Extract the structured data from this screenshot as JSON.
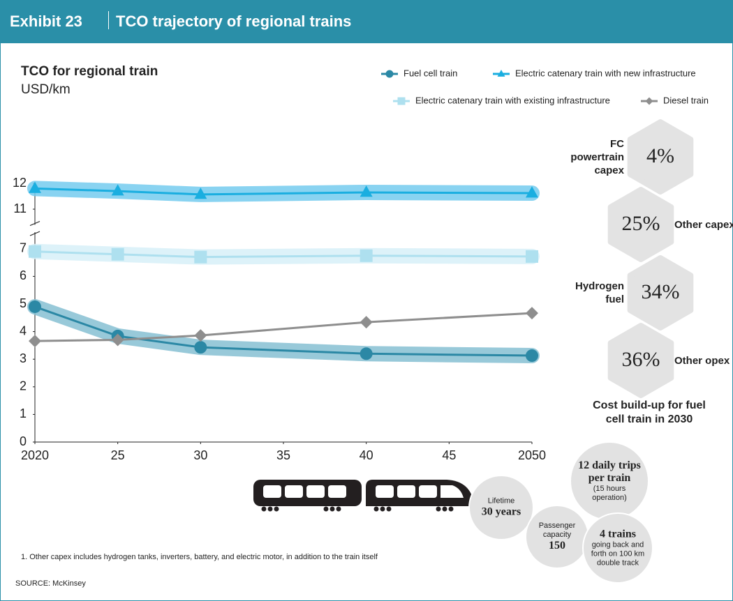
{
  "header": {
    "exhibit": "Exhibit 23",
    "title": "TCO trajectory of regional trains"
  },
  "chart_data": {
    "type": "line",
    "title": "TCO for regional train",
    "subtitle": "USD/km",
    "x": [
      2020,
      2025,
      2030,
      2040,
      2050
    ],
    "xlim": [
      2020,
      2050
    ],
    "xticks": [
      2020,
      {
        "value": 2025,
        "label": "25"
      },
      {
        "value": 2030,
        "label": "30"
      },
      {
        "value": 2035,
        "label": "35"
      },
      {
        "value": 2040,
        "label": "40"
      },
      {
        "value": 2045,
        "label": "45"
      },
      2050
    ],
    "ylim": [
      0,
      12
    ],
    "yticks": [
      0,
      1,
      2,
      3,
      4,
      5,
      6,
      7,
      11,
      12
    ],
    "y_break": [
      7.5,
      10.5
    ],
    "series": [
      {
        "name": "Fuel cell train",
        "color": "#2b88a5",
        "band_color": "#86bfd2",
        "marker": "circle",
        "values": [
          4.9,
          3.84,
          3.43,
          3.2,
          3.13
        ]
      },
      {
        "name": "Electric catenary train with new infrastructure",
        "color": "#1aaee0",
        "band_color": "#74cbee",
        "marker": "triangle",
        "values": [
          11.8,
          11.7,
          11.57,
          11.65,
          11.62
        ]
      },
      {
        "name": "Electric catenary train with existing infrastructure",
        "color": "#aee0ef",
        "band_color": "#d7f0f8",
        "marker": "square",
        "values": [
          6.9,
          6.8,
          6.7,
          6.75,
          6.72
        ]
      },
      {
        "name": "Diesel train",
        "color": "#8e8e8e",
        "marker": "diamond",
        "values": [
          3.66,
          3.7,
          3.86,
          4.34,
          4.67
        ]
      }
    ]
  },
  "cost_buildup": {
    "title": "Cost build-up for fuel cell train in 2030",
    "labels": [
      "FC powertrain capex",
      "Other capex¹",
      "Hydrogen fuel",
      "Other opex"
    ],
    "values": [
      4,
      25,
      34,
      36
    ],
    "value_labels": [
      "4%",
      "25%",
      "34%",
      "36%"
    ]
  },
  "facts": [
    {
      "label": "Lifetime",
      "value": "30 years"
    },
    {
      "label": "Passenger capacity",
      "value": "150"
    },
    {
      "value": "12 daily trips per train",
      "note": "(15 hours operation)"
    },
    {
      "value": "4 trains",
      "note": "going back and forth on 100 km double track"
    }
  ],
  "footnote": "1. Other capex includes hydrogen tanks, inverters, battery, and electric motor, in addition to the train itself",
  "source": "SOURCE: McKinsey"
}
